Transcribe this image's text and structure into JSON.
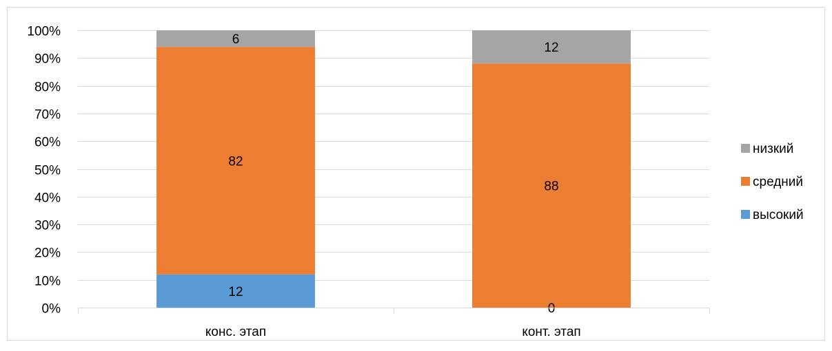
{
  "chart_data": {
    "type": "bar",
    "stacked": "percent",
    "title": "",
    "xlabel": "",
    "ylabel": "",
    "ylim": [
      0,
      100
    ],
    "yticks": [
      "0%",
      "10%",
      "20%",
      "30%",
      "40%",
      "50%",
      "60%",
      "70%",
      "80%",
      "90%",
      "100%"
    ],
    "categories": [
      "конс. этап",
      "конт. этап"
    ],
    "series": [
      {
        "name": "высокий",
        "values": [
          12,
          0
        ],
        "color": "#5B9BD5"
      },
      {
        "name": "средний",
        "values": [
          82,
          88
        ],
        "color": "#ED7D31"
      },
      {
        "name": "низкий",
        "values": [
          6,
          12
        ],
        "color": "#A5A5A5"
      }
    ],
    "legend_position": "right",
    "legend_order": [
      "низкий",
      "средний",
      "высокий"
    ],
    "grid": true
  }
}
